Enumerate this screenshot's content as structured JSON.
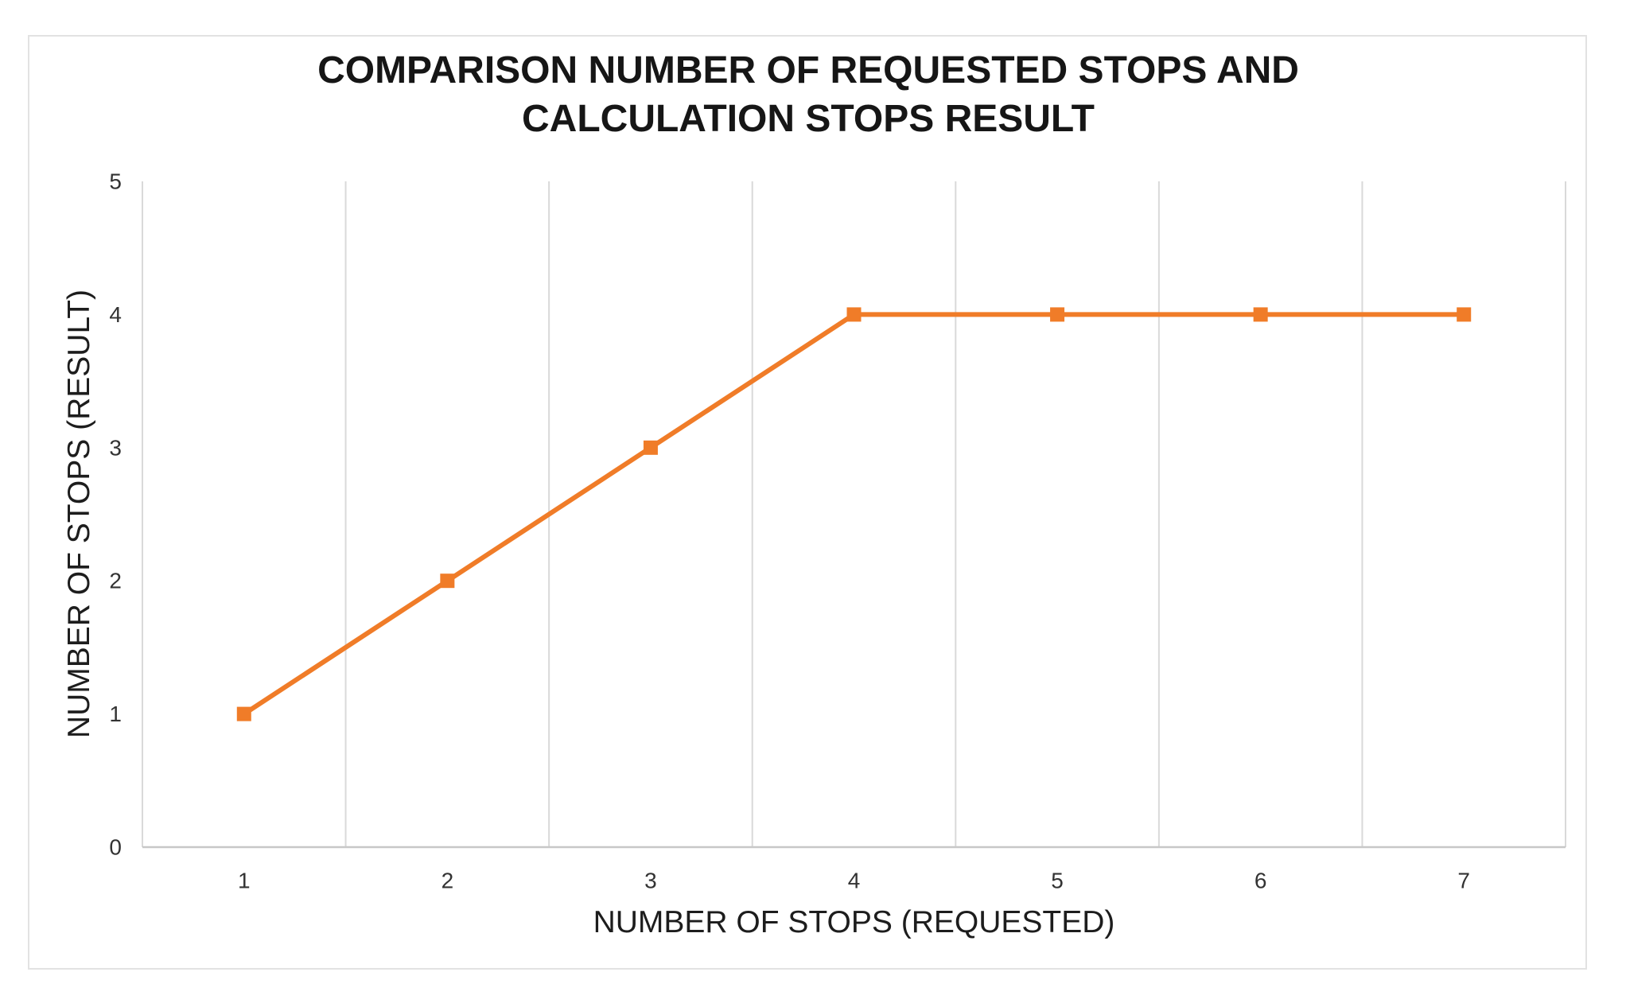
{
  "chart": {
    "title_line1": "COMPARISON NUMBER OF REQUESTED STOPS AND",
    "title_line2": "CALCULATION STOPS RESULT"
  },
  "chart_data": {
    "type": "line",
    "title": "COMPARISON NUMBER OF REQUESTED STOPS AND CALCULATION STOPS RESULT",
    "categories": [
      1,
      2,
      3,
      4,
      5,
      6,
      7
    ],
    "values": [
      1,
      2,
      3,
      4,
      4,
      4,
      4
    ],
    "xlabel": "NUMBER OF STOPS (REQUESTED)",
    "ylabel": "NUMBER OF STOPS (RESULT)",
    "ylim": [
      0,
      5
    ],
    "yticks": [
      0,
      1,
      2,
      3,
      4,
      5
    ],
    "grid": "vertical-only",
    "legend": "none",
    "marker": "square",
    "line_color": "#F07C28",
    "gridline_color": "#D9D9D9",
    "axis_line_color": "#C8C8C8",
    "frame_border_color": "#E2E2E2"
  }
}
